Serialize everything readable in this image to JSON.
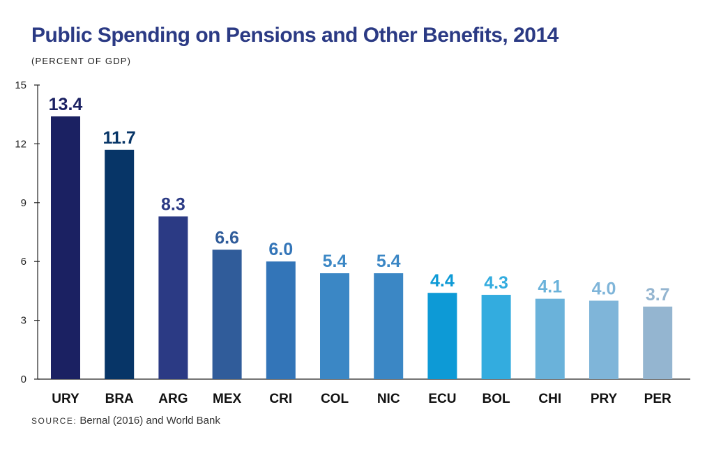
{
  "header": {
    "title": "Public Spending on Pensions and Other Benefits, 2014",
    "subtitle": "(PERCENT OF GDP)"
  },
  "source": {
    "label": "SOURCE:",
    "text": "Bernal (2016) and World Bank"
  },
  "chart_data": {
    "type": "bar",
    "categories": [
      "URY",
      "BRA",
      "ARG",
      "MEX",
      "CRI",
      "COL",
      "NIC",
      "ECU",
      "BOL",
      "CHI",
      "PRY",
      "PER"
    ],
    "values": [
      13.4,
      11.7,
      8.3,
      6.6,
      6.0,
      5.4,
      5.4,
      4.4,
      4.3,
      4.1,
      4.0,
      3.7
    ],
    "value_labels": [
      "13.4",
      "11.7",
      "8.3",
      "6.6",
      "6.0",
      "5.4",
      "5.4",
      "4.4",
      "4.3",
      "4.1",
      "4.0",
      "3.7"
    ],
    "colors": [
      "#1b2162",
      "#073567",
      "#2b3a84",
      "#305c9a",
      "#3375b8",
      "#3b87c5",
      "#3b87c5",
      "#0d9ad6",
      "#33acdf",
      "#6ab2da",
      "#7fb5d9",
      "#94b5d0"
    ],
    "title": "Public Spending on Pensions and Other Benefits, 2014",
    "ylabel": "(PERCENT OF GDP)",
    "ylim": [
      0,
      15
    ],
    "yticks": [
      0,
      3,
      6,
      9,
      12,
      15
    ],
    "grid": false
  }
}
